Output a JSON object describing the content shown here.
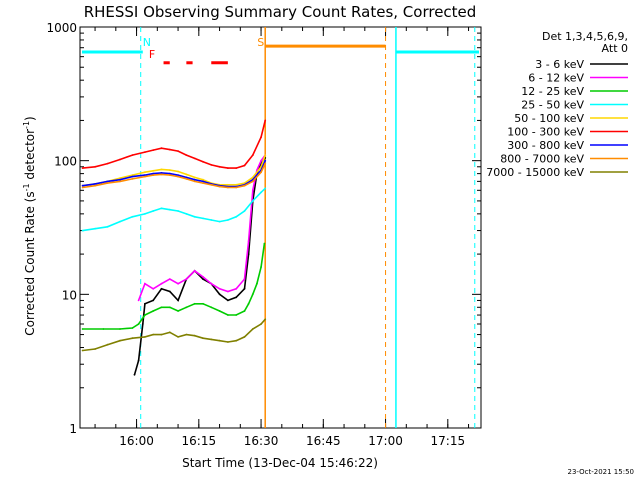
{
  "chart_data": {
    "type": "line",
    "title": "RHESSI Observing Summary Count Rates, Corrected",
    "xlabel": "Start Time (13-Dec-04 15:46:22)",
    "ylabel": "Corrected Count Rate (s⁻¹ detector⁻¹)",
    "ylabel_main": "Corrected Count Rate (s",
    "ylabel_sup1": "-1",
    "ylabel_mid": " detector",
    "ylabel_sup2": "-1",
    "ylabel_end": ")",
    "x_unit": "minutes since 15:00 UT",
    "xlim": [
      46.37,
      143.0
    ],
    "ylim": [
      1,
      1000
    ],
    "yscale": "log",
    "x_ticks": [
      {
        "value": 60,
        "label": "16:00"
      },
      {
        "value": 75,
        "label": "16:15"
      },
      {
        "value": 90,
        "label": "16:30"
      },
      {
        "value": 105,
        "label": "16:45"
      },
      {
        "value": 120,
        "label": "17:00"
      },
      {
        "value": 135,
        "label": "17:15"
      }
    ],
    "y_ticks": [
      {
        "value": 1,
        "label": "1"
      },
      {
        "value": 10,
        "label": "10"
      },
      {
        "value": 100,
        "label": "100"
      },
      {
        "value": 1000,
        "label": "1000"
      }
    ],
    "legend_title_1": "Det 1,3,4,5,6,9,",
    "legend_title_2": "Att 0",
    "legend_position": "right",
    "timestamp": "23-Oct-2021 15:50",
    "series": [
      {
        "name": "3 - 6 keV",
        "color": "#000000",
        "points": [
          [
            59.5,
            2.5
          ],
          [
            60.5,
            3.2
          ],
          [
            61.5,
            6
          ],
          [
            62,
            8.5
          ],
          [
            64,
            9
          ],
          [
            66,
            11
          ],
          [
            68,
            10.5
          ],
          [
            70,
            9
          ],
          [
            72,
            13
          ],
          [
            74,
            15
          ],
          [
            76,
            13
          ],
          [
            78,
            12
          ],
          [
            80,
            10
          ],
          [
            82,
            9
          ],
          [
            84,
            9.5
          ],
          [
            86,
            11
          ],
          [
            87,
            20
          ],
          [
            88,
            50
          ],
          [
            89,
            80
          ],
          [
            90,
            95
          ],
          [
            91,
            105
          ]
        ]
      },
      {
        "name": "6 - 12 keV",
        "color": "#ff00ff",
        "points": [
          [
            60.5,
            9
          ],
          [
            62,
            12
          ],
          [
            64,
            11
          ],
          [
            66,
            12
          ],
          [
            68,
            13
          ],
          [
            70,
            12
          ],
          [
            72,
            13
          ],
          [
            74,
            15
          ],
          [
            76,
            13.5
          ],
          [
            78,
            12
          ],
          [
            80,
            11
          ],
          [
            82,
            10.5
          ],
          [
            84,
            11
          ],
          [
            86,
            13
          ],
          [
            87,
            25
          ],
          [
            88,
            60
          ],
          [
            89,
            85
          ],
          [
            90,
            100
          ],
          [
            91,
            110
          ]
        ]
      },
      {
        "name": "12 - 25 keV",
        "color": "#00cc00",
        "points": [
          [
            47,
            5.5
          ],
          [
            52,
            5.5
          ],
          [
            56,
            5.5
          ],
          [
            59,
            5.6
          ],
          [
            60.5,
            6
          ],
          [
            62,
            7
          ],
          [
            64,
            7.5
          ],
          [
            66,
            8
          ],
          [
            68,
            8
          ],
          [
            70,
            7.5
          ],
          [
            72,
            8
          ],
          [
            74,
            8.5
          ],
          [
            76,
            8.5
          ],
          [
            78,
            8
          ],
          [
            80,
            7.5
          ],
          [
            82,
            7
          ],
          [
            84,
            7
          ],
          [
            86,
            7.5
          ],
          [
            87,
            8.5
          ],
          [
            88,
            10
          ],
          [
            89,
            12
          ],
          [
            90,
            16
          ],
          [
            90.8,
            24
          ]
        ]
      },
      {
        "name": "25 - 50 keV",
        "color": "#00ffff",
        "points": [
          [
            47,
            30
          ],
          [
            50,
            31
          ],
          [
            53,
            32
          ],
          [
            56,
            35
          ],
          [
            59,
            38
          ],
          [
            62,
            40
          ],
          [
            64,
            42
          ],
          [
            66,
            44
          ],
          [
            68,
            43
          ],
          [
            70,
            42
          ],
          [
            72,
            40
          ],
          [
            74,
            38
          ],
          [
            76,
            37
          ],
          [
            78,
            36
          ],
          [
            80,
            35
          ],
          [
            82,
            36
          ],
          [
            84,
            38
          ],
          [
            86,
            42
          ],
          [
            88,
            50
          ],
          [
            90,
            58
          ],
          [
            91,
            62
          ]
        ]
      },
      {
        "name": "50 - 100 keV",
        "color": "#ffd700",
        "points": [
          [
            47,
            65
          ],
          [
            50,
            67
          ],
          [
            53,
            70
          ],
          [
            56,
            74
          ],
          [
            59,
            78
          ],
          [
            62,
            82
          ],
          [
            64,
            84
          ],
          [
            66,
            86
          ],
          [
            68,
            85
          ],
          [
            70,
            83
          ],
          [
            72,
            79
          ],
          [
            74,
            75
          ],
          [
            76,
            72
          ],
          [
            78,
            68
          ],
          [
            80,
            66
          ],
          [
            82,
            66
          ],
          [
            84,
            66
          ],
          [
            86,
            68
          ],
          [
            88,
            75
          ],
          [
            90,
            90
          ],
          [
            91,
            110
          ]
        ]
      },
      {
        "name": "100 - 300 keV",
        "color": "#ff0000",
        "points": [
          [
            47,
            88
          ],
          [
            50,
            90
          ],
          [
            53,
            95
          ],
          [
            56,
            102
          ],
          [
            59,
            110
          ],
          [
            62,
            116
          ],
          [
            64,
            120
          ],
          [
            66,
            124
          ],
          [
            68,
            121
          ],
          [
            70,
            118
          ],
          [
            72,
            110
          ],
          [
            74,
            104
          ],
          [
            76,
            98
          ],
          [
            78,
            93
          ],
          [
            80,
            90
          ],
          [
            82,
            88
          ],
          [
            84,
            88
          ],
          [
            86,
            92
          ],
          [
            88,
            110
          ],
          [
            90,
            150
          ],
          [
            91,
            200
          ]
        ]
      },
      {
        "name": "300 - 800 keV",
        "color": "#0000ff",
        "points": [
          [
            47,
            65
          ],
          [
            50,
            67
          ],
          [
            53,
            70
          ],
          [
            56,
            72
          ],
          [
            59,
            76
          ],
          [
            62,
            78
          ],
          [
            64,
            80
          ],
          [
            66,
            81
          ],
          [
            68,
            80
          ],
          [
            70,
            78
          ],
          [
            72,
            75
          ],
          [
            74,
            72
          ],
          [
            76,
            70
          ],
          [
            78,
            67
          ],
          [
            80,
            65
          ],
          [
            82,
            64
          ],
          [
            84,
            64
          ],
          [
            86,
            66
          ],
          [
            88,
            72
          ],
          [
            90,
            85
          ],
          [
            91,
            100
          ]
        ]
      },
      {
        "name": "800 - 7000 keV",
        "color": "#ff8c00",
        "points": [
          [
            47,
            63
          ],
          [
            50,
            65
          ],
          [
            53,
            68
          ],
          [
            56,
            70
          ],
          [
            59,
            73
          ],
          [
            62,
            76
          ],
          [
            64,
            78
          ],
          [
            66,
            79
          ],
          [
            68,
            78
          ],
          [
            70,
            76
          ],
          [
            72,
            73
          ],
          [
            74,
            70
          ],
          [
            76,
            68
          ],
          [
            78,
            66
          ],
          [
            80,
            64
          ],
          [
            82,
            63
          ],
          [
            84,
            63
          ],
          [
            86,
            65
          ],
          [
            88,
            70
          ],
          [
            90,
            82
          ],
          [
            91,
            95
          ]
        ]
      },
      {
        "name": "7000 - 15000 keV",
        "color": "#808000",
        "points": [
          [
            47,
            3.8
          ],
          [
            50,
            3.9
          ],
          [
            53,
            4.2
          ],
          [
            56,
            4.5
          ],
          [
            59,
            4.7
          ],
          [
            62,
            4.8
          ],
          [
            64,
            5
          ],
          [
            66,
            5
          ],
          [
            68,
            5.2
          ],
          [
            70,
            4.8
          ],
          [
            72,
            5
          ],
          [
            74,
            4.9
          ],
          [
            76,
            4.7
          ],
          [
            78,
            4.6
          ],
          [
            80,
            4.5
          ],
          [
            82,
            4.4
          ],
          [
            84,
            4.5
          ],
          [
            86,
            4.8
          ],
          [
            88,
            5.5
          ],
          [
            90,
            6
          ],
          [
            91,
            6.5
          ]
        ]
      }
    ],
    "annotations": [
      {
        "label": "N",
        "color": "#00ffff",
        "x": 61
      },
      {
        "label": "F",
        "color": "#ff0000",
        "x": 62
      },
      {
        "label": "S",
        "color": "#ff8c00",
        "x": 91
      }
    ]
  }
}
